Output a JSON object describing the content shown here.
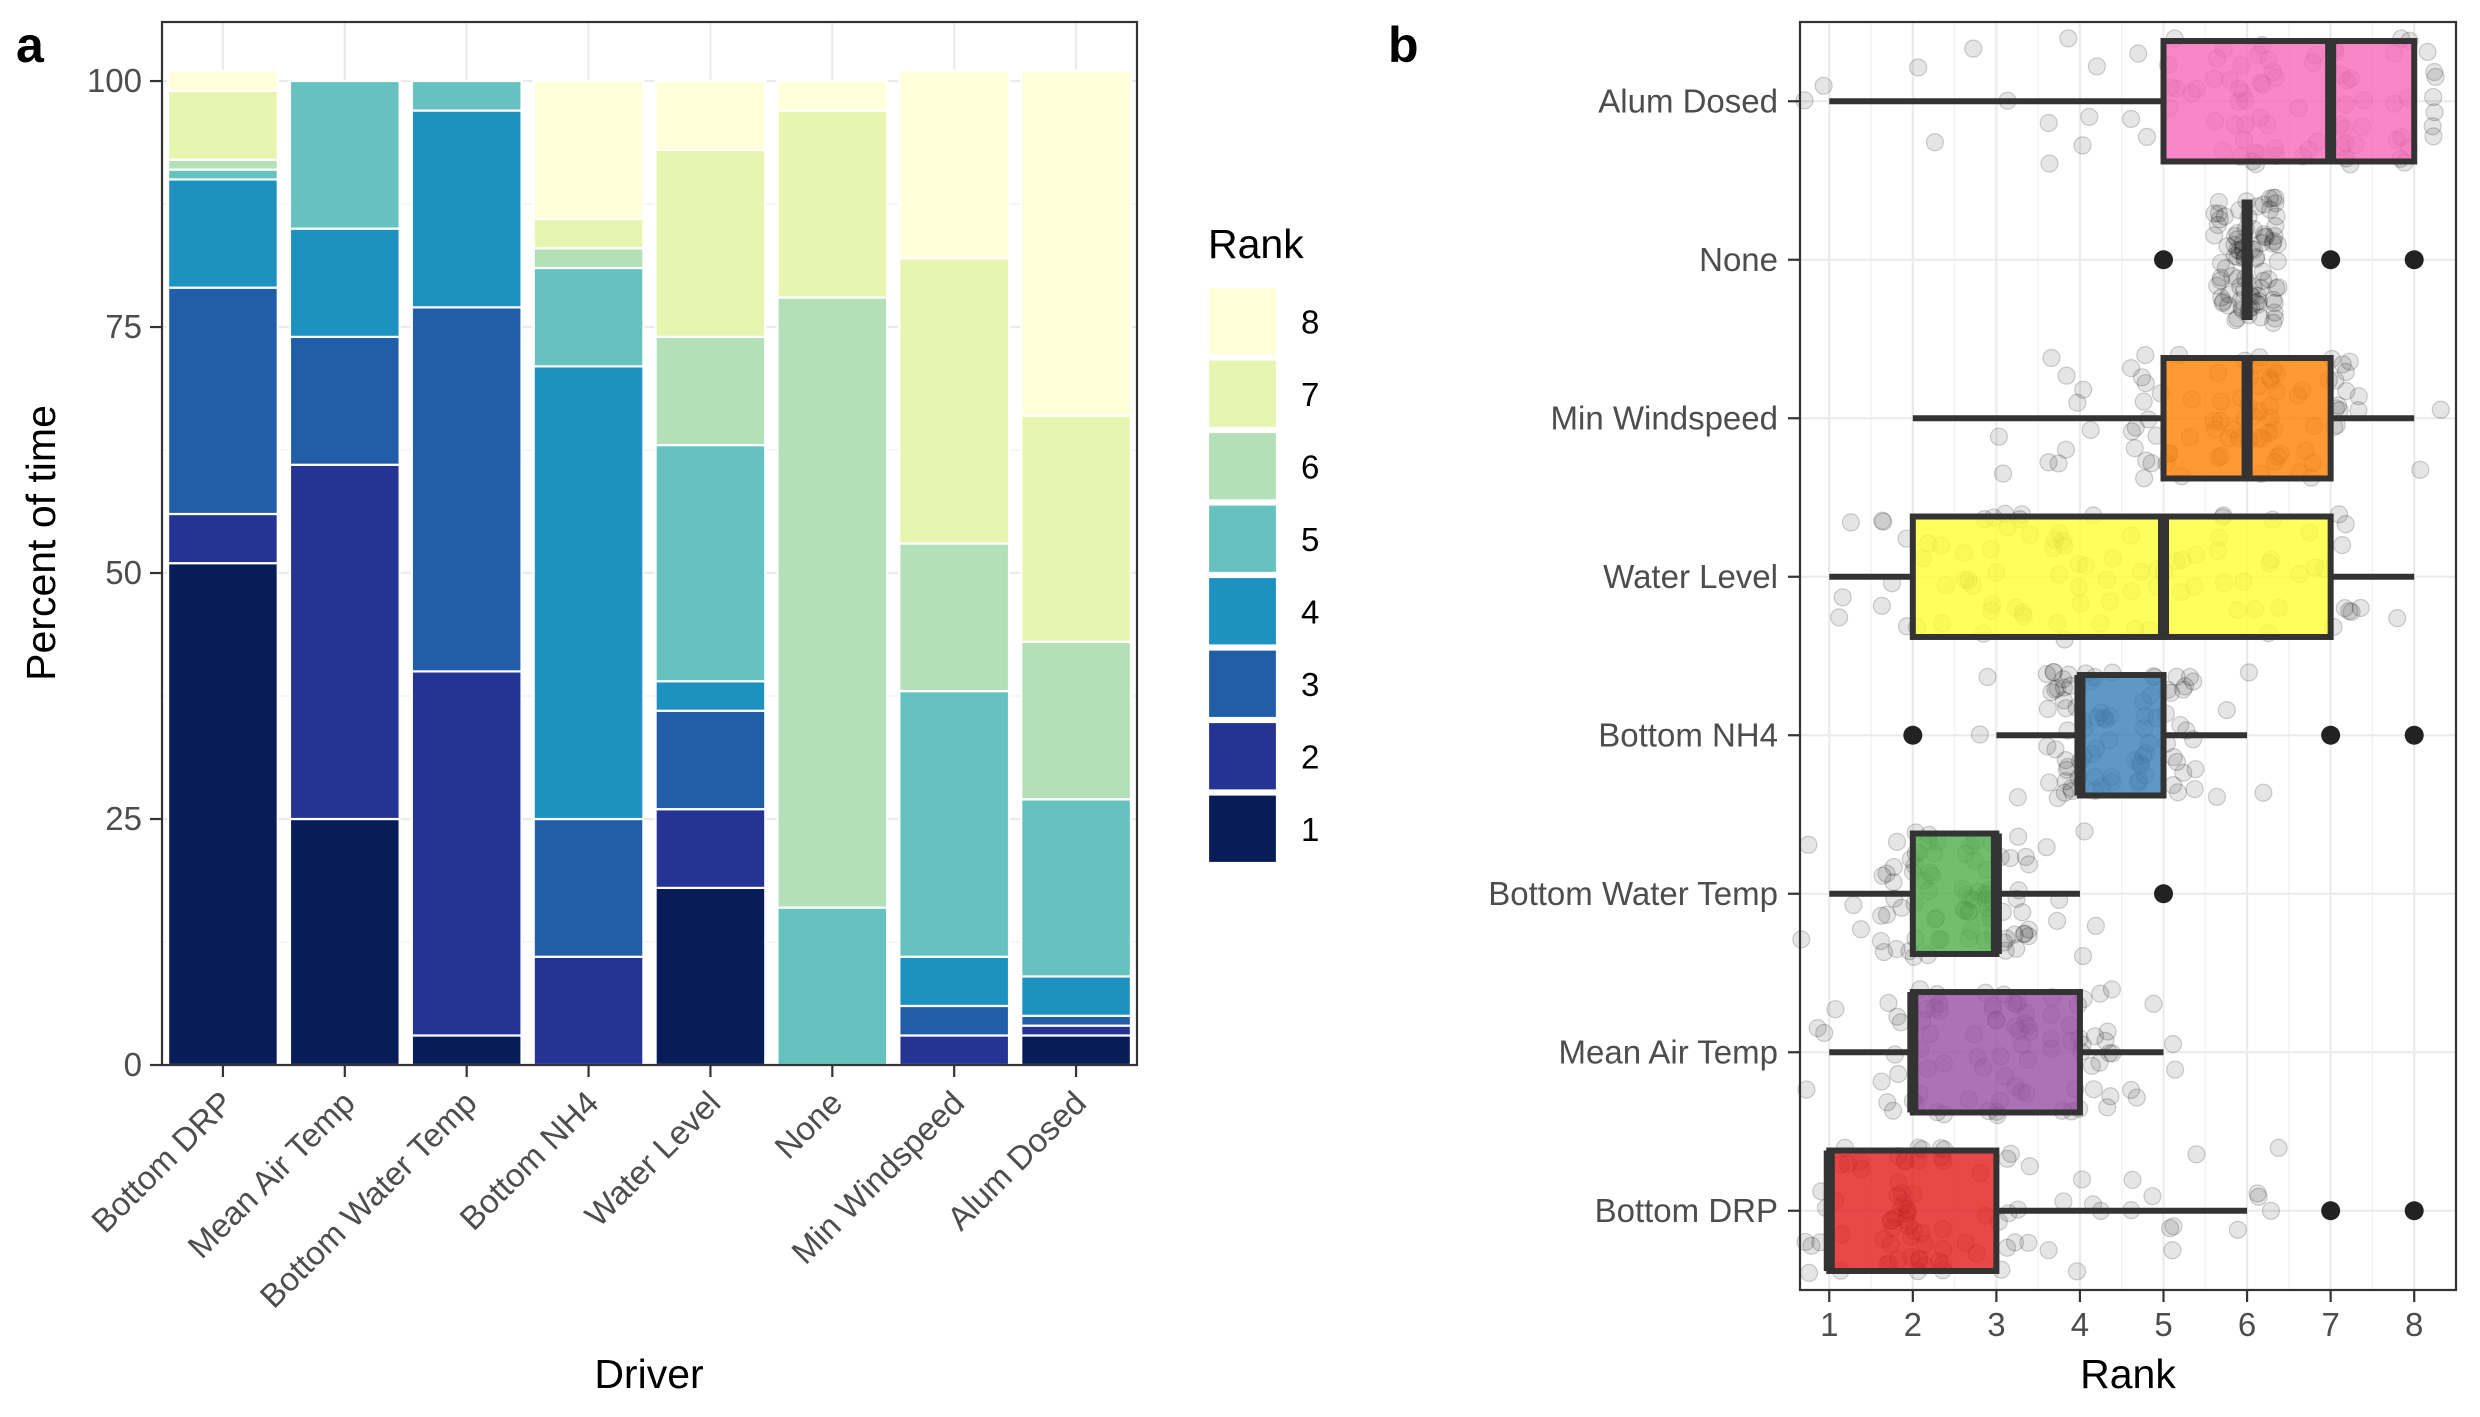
{
  "chart_data": [
    {
      "panel": "a",
      "type": "bar",
      "stacked": true,
      "xlabel": "Driver",
      "ylabel": "Percent of time",
      "ylim": [
        0,
        106
      ],
      "y_ticks": [
        0,
        25,
        50,
        75,
        100
      ],
      "y_tick_labels": [
        "0",
        "25",
        "50",
        "75",
        "100"
      ],
      "grid": true,
      "categories": [
        "Bottom DRP",
        "Mean Air Temp",
        "Bottom Water Temp",
        "Bottom NH4",
        "Water Level",
        "None",
        "Min Windspeed",
        "Alum Dosed"
      ],
      "legend": {
        "title": "Rank",
        "placement": "right"
      },
      "series": [
        {
          "name": "1",
          "color": "#081d58",
          "values": [
            51,
            25,
            3,
            0,
            18,
            0,
            0,
            3
          ]
        },
        {
          "name": "2",
          "color": "#253494",
          "values": [
            5,
            36,
            37,
            11,
            8,
            0,
            3,
            1
          ]
        },
        {
          "name": "3",
          "color": "#225ea8",
          "values": [
            23,
            13,
            37,
            14,
            10,
            0,
            3,
            1
          ]
        },
        {
          "name": "4",
          "color": "#1d91c0",
          "values": [
            11,
            11,
            20,
            46,
            3,
            0,
            5,
            4
          ]
        },
        {
          "name": "5",
          "color": "#66c2be",
          "values": [
            1,
            15,
            3,
            10,
            24,
            16,
            27,
            18
          ]
        },
        {
          "name": "6",
          "color": "#b3e0b6",
          "values": [
            1,
            0,
            0,
            2,
            11,
            62,
            15,
            16
          ]
        },
        {
          "name": "7",
          "color": "#e8f5b1",
          "values": [
            7,
            0,
            0,
            3,
            19,
            19,
            29,
            23
          ]
        },
        {
          "name": "8",
          "color": "#ffffd9",
          "values": [
            2,
            0,
            0,
            14,
            7,
            3,
            19,
            35
          ]
        }
      ]
    },
    {
      "panel": "b",
      "type": "box",
      "orientation": "horizontal",
      "xlabel": "Rank",
      "ylabel": "",
      "xlim": [
        0.65,
        8.5
      ],
      "x_ticks": [
        1,
        2,
        3,
        4,
        5,
        6,
        7,
        8
      ],
      "x_tick_labels": [
        "1",
        "2",
        "3",
        "4",
        "5",
        "6",
        "7",
        "8"
      ],
      "grid": true,
      "jittered_points": true,
      "categories": [
        "Alum Dosed",
        "None",
        "Min Windspeed",
        "Water Level",
        "Bottom NH4",
        "Bottom Water Temp",
        "Mean Air Temp",
        "Bottom DRP"
      ],
      "boxes": [
        {
          "name": "Alum Dosed",
          "color": "#f768b8",
          "q1": 5,
          "median": 7,
          "q3": 8,
          "whisker_low": 1,
          "whisker_high": 8,
          "outliers": []
        },
        {
          "name": "None",
          "color": "#4d4d4d",
          "q1": 6,
          "median": 6,
          "q3": 6,
          "whisker_low": 6,
          "whisker_high": 6,
          "outliers": [
            5,
            7,
            8
          ]
        },
        {
          "name": "Min Windspeed",
          "color": "#ff7f00",
          "q1": 5,
          "median": 6,
          "q3": 7,
          "whisker_low": 2,
          "whisker_high": 8,
          "outliers": []
        },
        {
          "name": "Water Level",
          "color": "#ffff33",
          "q1": 2,
          "median": 5,
          "q3": 7,
          "whisker_low": 1,
          "whisker_high": 8,
          "outliers": []
        },
        {
          "name": "Bottom NH4",
          "color": "#377eb8",
          "q1": 4,
          "median": 4,
          "q3": 5,
          "whisker_low": 3,
          "whisker_high": 6,
          "outliers": [
            2,
            7,
            8
          ]
        },
        {
          "name": "Bottom Water Temp",
          "color": "#4daf4a",
          "q1": 2,
          "median": 3,
          "q3": 3,
          "whisker_low": 1,
          "whisker_high": 4,
          "outliers": [
            5
          ]
        },
        {
          "name": "Mean Air Temp",
          "color": "#984ea3",
          "q1": 2,
          "median": 2,
          "q3": 4,
          "whisker_low": 1,
          "whisker_high": 5,
          "outliers": []
        },
        {
          "name": "Bottom DRP",
          "color": "#e41a1c",
          "q1": 1,
          "median": 1,
          "q3": 3,
          "whisker_low": 1,
          "whisker_high": 6,
          "outliers": [
            7,
            8
          ]
        }
      ]
    }
  ]
}
